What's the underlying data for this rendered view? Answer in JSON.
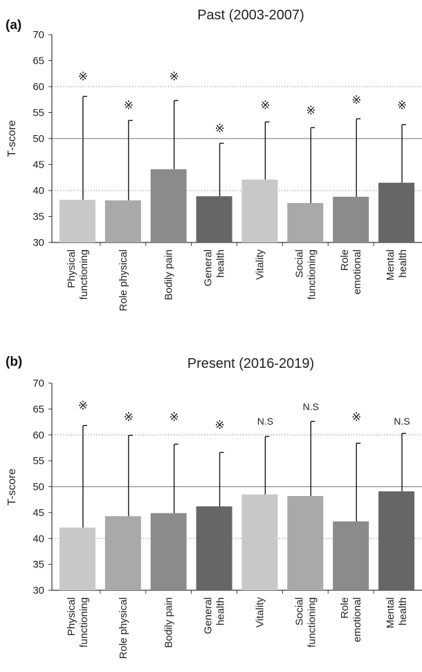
{
  "chart_data": [
    {
      "type": "bar",
      "panel_label": "(a)",
      "title": "Past (2003-2007)",
      "ylabel": "T-score",
      "xlabel": "",
      "ylim": [
        30,
        70
      ],
      "yticks": [
        30,
        35,
        40,
        45,
        50,
        55,
        60,
        65,
        70
      ],
      "reference_lines": [
        {
          "y": 50,
          "style": "solid"
        },
        {
          "y": 40,
          "style": "dotted"
        },
        {
          "y": 60,
          "style": "dotted"
        }
      ],
      "categories": [
        [
          "Physical",
          "functioning"
        ],
        [
          "Role physical"
        ],
        [
          "Bodily pain"
        ],
        [
          "General",
          "health"
        ],
        [
          "Vitality"
        ],
        [
          "Social",
          "functioning"
        ],
        [
          "Role",
          "emotional"
        ],
        [
          "Mental",
          "health"
        ]
      ],
      "values": [
        38.2,
        38.1,
        44.1,
        38.9,
        42.1,
        37.6,
        38.8,
        41.5
      ],
      "error_upper": [
        58.1,
        53.5,
        57.3,
        49.1,
        53.2,
        52.1,
        53.8,
        52.7
      ],
      "annotations": [
        "※",
        "※",
        "※",
        "※",
        "※",
        "※",
        "※",
        "※"
      ],
      "annotation_y": [
        62,
        56.5,
        62,
        52,
        56.5,
        55.5,
        57.5,
        56.5
      ],
      "colors": [
        "#c8c8c8",
        "#a9a9a9",
        "#8b8b8b",
        "#666666",
        "#c8c8c8",
        "#a9a9a9",
        "#8b8b8b",
        "#666666"
      ]
    },
    {
      "type": "bar",
      "panel_label": "(b)",
      "title": "Present (2016-2019)",
      "ylabel": "T-score",
      "xlabel": "",
      "ylim": [
        30,
        70
      ],
      "yticks": [
        30,
        35,
        40,
        45,
        50,
        55,
        60,
        65,
        70
      ],
      "reference_lines": [
        {
          "y": 50,
          "style": "solid"
        },
        {
          "y": 40,
          "style": "dotted"
        },
        {
          "y": 60,
          "style": "dotted"
        }
      ],
      "categories": [
        [
          "Physical",
          "functioning"
        ],
        [
          "Role physical"
        ],
        [
          "Bodily pain"
        ],
        [
          "General",
          "health"
        ],
        [
          "Vitality"
        ],
        [
          "Social",
          "functioning"
        ],
        [
          "Role",
          "emotional"
        ],
        [
          "Mental",
          "health"
        ]
      ],
      "values": [
        42.1,
        44.3,
        44.9,
        46.2,
        48.5,
        48.2,
        43.3,
        49.1
      ],
      "error_upper": [
        61.8,
        59.9,
        58.2,
        56.6,
        59.7,
        62.6,
        58.4,
        60.3
      ],
      "annotations": [
        "※",
        "※",
        "※",
        "※",
        "N.S",
        "N.S",
        "※",
        "N.S"
      ],
      "annotation_y": [
        65.7,
        63.5,
        63.5,
        62,
        62.8,
        65.6,
        63.5,
        62.8
      ],
      "colors": [
        "#c8c8c8",
        "#a9a9a9",
        "#8b8b8b",
        "#666666",
        "#c8c8c8",
        "#a9a9a9",
        "#8b8b8b",
        "#666666"
      ]
    }
  ]
}
